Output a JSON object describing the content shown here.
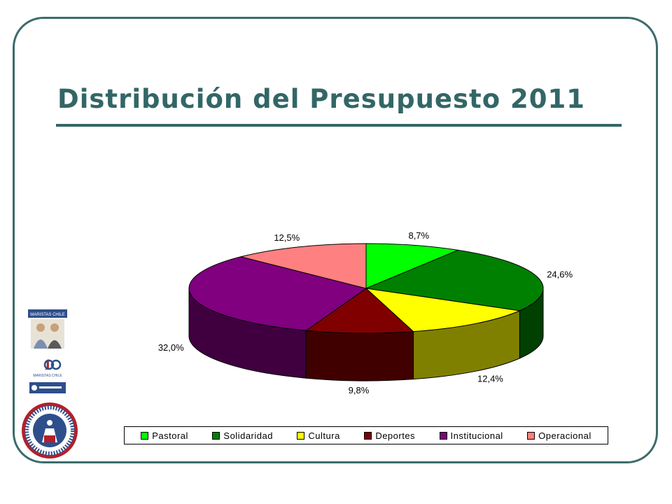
{
  "slide": {
    "title": "Distribución del Presupuesto 2011",
    "accent_color": "#336666",
    "logo_icons": [
      "maristas-chile-logo",
      "100-anos-logo",
      "soñamos-futuro-logo",
      "centro-padres-crest-icon"
    ]
  },
  "chart_data": {
    "type": "pie",
    "title": "",
    "three_d": true,
    "legend_position": "bottom",
    "label_format": "percent",
    "categories": [
      "Pastoral",
      "Solidaridad",
      "Cultura",
      "Deportes",
      "Institucional",
      "Operacional"
    ],
    "values": [
      8.7,
      24.6,
      12.4,
      9.8,
      32.0,
      12.5
    ],
    "labels": [
      "8,7%",
      "24,6%",
      "12,4%",
      "9,8%",
      "32,0%",
      "12,5%"
    ],
    "colors": [
      "#00ff00",
      "#008000",
      "#ffff00",
      "#800000",
      "#800080",
      "#ff8080"
    ]
  }
}
